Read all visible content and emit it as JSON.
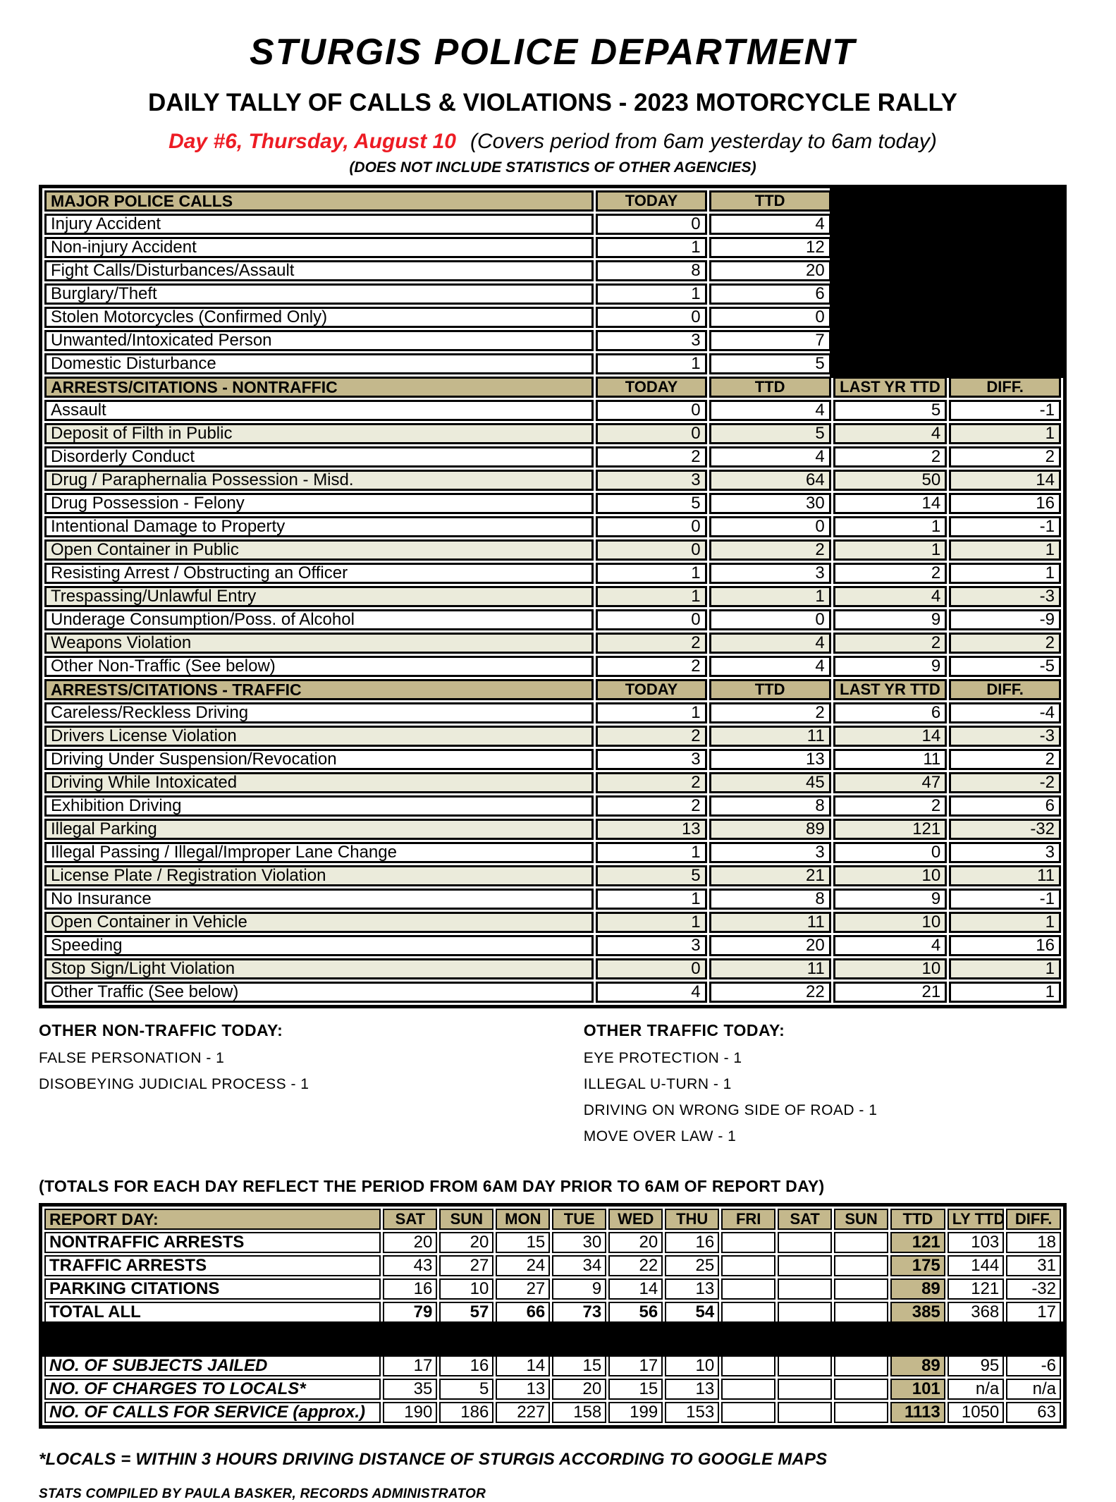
{
  "header": {
    "title": "STURGIS POLICE DEPARTMENT",
    "subtitle": "DAILY TALLY OF CALLS & VIOLATIONS - 2023 MOTORCYCLE RALLY",
    "day_label": "Day #6, Thursday, August 10",
    "period_note": "(Covers period from 6am yesterday to 6am today)",
    "agency_note": "(DOES NOT INCLUDE STATISTICS OF OTHER AGENCIES)"
  },
  "colors": {
    "header_tan": "#C4B88C",
    "row_shade": "#EBEBDB",
    "accent_red": "#ED1C24",
    "redacted_black": "#000000"
  },
  "calls_table": {
    "sections": [
      {
        "title": "MAJOR POLICE CALLS",
        "columns": [
          "TODAY",
          "TTD"
        ],
        "black_block": true,
        "rows": [
          {
            "label": "Injury Accident",
            "values": [
              "0",
              "4"
            ],
            "shaded": false
          },
          {
            "label": "Non-injury Accident",
            "values": [
              "1",
              "12"
            ],
            "shaded": false
          },
          {
            "label": "Fight Calls/Disturbances/Assault",
            "values": [
              "8",
              "20"
            ],
            "shaded": false
          },
          {
            "label": "Burglary/Theft",
            "values": [
              "1",
              "6"
            ],
            "shaded": false
          },
          {
            "label": "Stolen Motorcycles (Confirmed Only)",
            "values": [
              "0",
              "0"
            ],
            "shaded": false
          },
          {
            "label": "Unwanted/Intoxicated Person",
            "values": [
              "3",
              "7"
            ],
            "shaded": false
          },
          {
            "label": "Domestic Disturbance",
            "values": [
              "1",
              "5"
            ],
            "shaded": false
          }
        ]
      },
      {
        "title": "ARRESTS/CITATIONS - NONTRAFFIC",
        "columns": [
          "TODAY",
          "TTD",
          "LAST YR TTD",
          "DIFF."
        ],
        "black_block": false,
        "rows": [
          {
            "label": "Assault",
            "values": [
              "0",
              "4",
              "5",
              "-1"
            ],
            "shaded": false
          },
          {
            "label": "Deposit of Filth in Public",
            "values": [
              "0",
              "5",
              "4",
              "1"
            ],
            "shaded": true
          },
          {
            "label": "Disorderly Conduct",
            "values": [
              "2",
              "4",
              "2",
              "2"
            ],
            "shaded": false
          },
          {
            "label": "Drug / Paraphernalia Possession - Misd.",
            "values": [
              "3",
              "64",
              "50",
              "14"
            ],
            "shaded": true
          },
          {
            "label": "Drug Possession - Felony",
            "values": [
              "5",
              "30",
              "14",
              "16"
            ],
            "shaded": false
          },
          {
            "label": "Intentional Damage to Property",
            "values": [
              "0",
              "0",
              "1",
              "-1"
            ],
            "shaded": false
          },
          {
            "label": "Open Container in Public",
            "values": [
              "0",
              "2",
              "1",
              "1"
            ],
            "shaded": true
          },
          {
            "label": "Resisting Arrest / Obstructing an Officer",
            "values": [
              "1",
              "3",
              "2",
              "1"
            ],
            "shaded": false
          },
          {
            "label": "Trespassing/Unlawful Entry",
            "values": [
              "1",
              "1",
              "4",
              "-3"
            ],
            "shaded": true
          },
          {
            "label": "Underage Consumption/Poss. of Alcohol",
            "values": [
              "0",
              "0",
              "9",
              "-9"
            ],
            "shaded": false
          },
          {
            "label": "Weapons Violation",
            "values": [
              "2",
              "4",
              "2",
              "2"
            ],
            "shaded": true
          },
          {
            "label": "Other Non-Traffic (See below)",
            "values": [
              "2",
              "4",
              "9",
              "-5"
            ],
            "shaded": false
          }
        ]
      },
      {
        "title": "ARRESTS/CITATIONS - TRAFFIC",
        "columns": [
          "TODAY",
          "TTD",
          "LAST YR TTD",
          "DIFF."
        ],
        "black_block": false,
        "rows": [
          {
            "label": "Careless/Reckless Driving",
            "values": [
              "1",
              "2",
              "6",
              "-4"
            ],
            "shaded": false
          },
          {
            "label": "Drivers License Violation",
            "values": [
              "2",
              "11",
              "14",
              "-3"
            ],
            "shaded": true
          },
          {
            "label": "Driving Under Suspension/Revocation",
            "values": [
              "3",
              "13",
              "11",
              "2"
            ],
            "shaded": false
          },
          {
            "label": "Driving While Intoxicated",
            "values": [
              "2",
              "45",
              "47",
              "-2"
            ],
            "shaded": true
          },
          {
            "label": "Exhibition Driving",
            "values": [
              "2",
              "8",
              "2",
              "6"
            ],
            "shaded": false
          },
          {
            "label": "Illegal Parking",
            "values": [
              "13",
              "89",
              "121",
              "-32"
            ],
            "shaded": true
          },
          {
            "label": "Illegal Passing / Illegal/Improper Lane Change",
            "values": [
              "1",
              "3",
              "0",
              "3"
            ],
            "shaded": false
          },
          {
            "label": "License Plate / Registration Violation",
            "values": [
              "5",
              "21",
              "10",
              "11"
            ],
            "shaded": true
          },
          {
            "label": "No Insurance",
            "values": [
              "1",
              "8",
              "9",
              "-1"
            ],
            "shaded": false
          },
          {
            "label": "Open Container in Vehicle",
            "values": [
              "1",
              "11",
              "10",
              "1"
            ],
            "shaded": true
          },
          {
            "label": "Speeding",
            "values": [
              "3",
              "20",
              "4",
              "16"
            ],
            "shaded": false
          },
          {
            "label": "Stop Sign/Light Violation",
            "values": [
              "0",
              "11",
              "10",
              "1"
            ],
            "shaded": true
          },
          {
            "label": "Other Traffic (See below)",
            "values": [
              "4",
              "22",
              "21",
              "1"
            ],
            "shaded": false
          }
        ]
      }
    ]
  },
  "other_nontraffic": {
    "title": "OTHER NON-TRAFFIC TODAY:",
    "items": [
      "FALSE PERSONATION - 1",
      "DISOBEYING JUDICIAL PROCESS - 1"
    ]
  },
  "other_traffic": {
    "title": "OTHER TRAFFIC TODAY:",
    "items": [
      "EYE PROTECTION - 1",
      "ILLEGAL U-TURN - 1",
      "DRIVING ON WRONG SIDE OF ROAD - 1",
      "MOVE OVER LAW - 1"
    ]
  },
  "totals_note": "(TOTALS FOR EACH DAY REFLECT THE PERIOD FROM 6AM DAY PRIOR TO 6AM OF REPORT DAY)",
  "summary_table": {
    "header": [
      "REPORT DAY:",
      "SAT",
      "SUN",
      "MON",
      "TUE",
      "WED",
      "THU",
      "FRI",
      "SAT",
      "SUN",
      "TTD",
      "LY TTD",
      "DIFF."
    ],
    "rows": [
      {
        "label": "NONTRAFFIC ARRESTS",
        "italic": false,
        "bold_values": false,
        "values": [
          "20",
          "20",
          "15",
          "30",
          "20",
          "16",
          "",
          "",
          "",
          "121",
          "103",
          "18"
        ]
      },
      {
        "label": "TRAFFIC ARRESTS",
        "italic": false,
        "bold_values": false,
        "values": [
          "43",
          "27",
          "24",
          "34",
          "22",
          "25",
          "",
          "",
          "",
          "175",
          "144",
          "31"
        ]
      },
      {
        "label": "PARKING CITATIONS",
        "italic": false,
        "bold_values": false,
        "values": [
          "16",
          "10",
          "27",
          "9",
          "14",
          "13",
          "",
          "",
          "",
          "89",
          "121",
          "-32"
        ]
      },
      {
        "label": "TOTAL ALL",
        "italic": false,
        "bold_values": true,
        "values": [
          "79",
          "57",
          "66",
          "73",
          "56",
          "54",
          "",
          "",
          "",
          "385",
          "368",
          "17"
        ]
      },
      {
        "separator": true
      },
      {
        "label": "NO. OF SUBJECTS JAILED",
        "italic": true,
        "bold_values": false,
        "values": [
          "17",
          "16",
          "14",
          "15",
          "17",
          "10",
          "",
          "",
          "",
          "89",
          "95",
          "-6"
        ]
      },
      {
        "label": "NO. OF CHARGES TO LOCALS*",
        "italic": true,
        "bold_values": false,
        "values": [
          "35",
          "5",
          "13",
          "20",
          "15",
          "13",
          "",
          "",
          "",
          "101",
          "n/a",
          "n/a"
        ]
      },
      {
        "label": "NO. OF CALLS FOR SERVICE (approx.)",
        "italic": true,
        "bold_values": false,
        "values": [
          "190",
          "186",
          "227",
          "158",
          "199",
          "153",
          "",
          "",
          "",
          "1113",
          "1050",
          "63"
        ]
      }
    ]
  },
  "footnotes": {
    "locals": "*LOCALS = WITHIN 3 HOURS DRIVING DISTANCE OF STURGIS ACCORDING TO GOOGLE MAPS",
    "compiled": "STATS COMPILED BY PAULA BASKER, RECORDS ADMINISTRATOR"
  }
}
